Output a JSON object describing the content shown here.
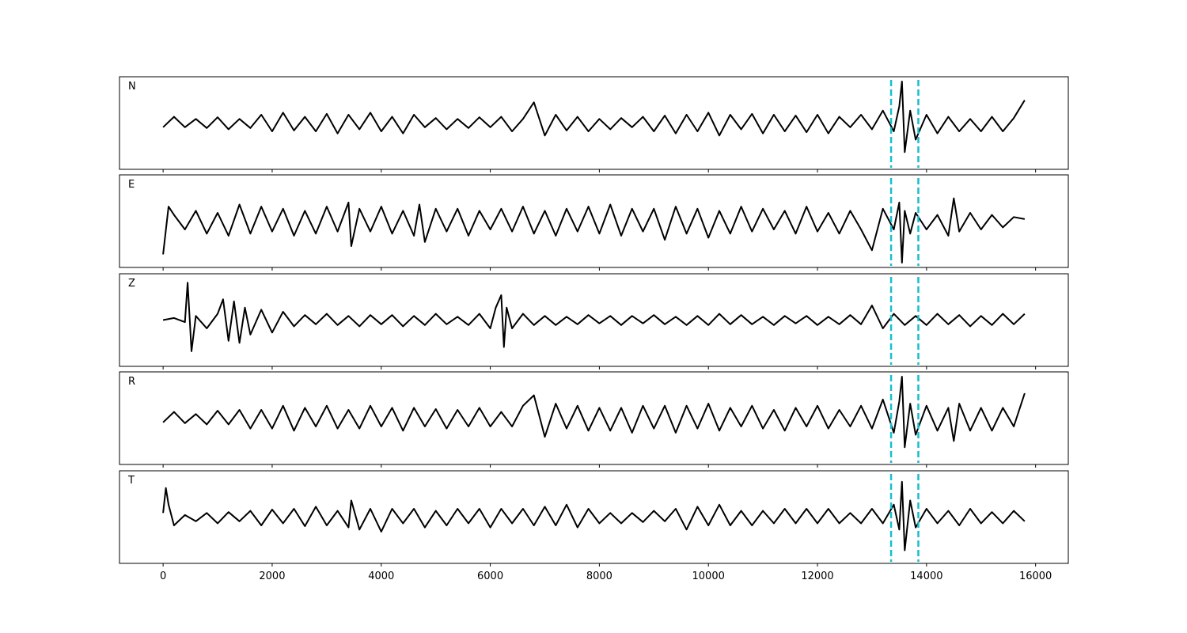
{
  "chart_data": {
    "type": "line",
    "layout": "stacked-panels",
    "shared_x_axis": true,
    "xlim": [
      -800,
      16600
    ],
    "x_ticks": [
      0,
      2000,
      4000,
      6000,
      8000,
      10000,
      12000,
      14000,
      16000
    ],
    "x_tick_labels": [
      "0",
      "2000",
      "4000",
      "6000",
      "8000",
      "10000",
      "12000",
      "14000",
      "16000"
    ],
    "grid": false,
    "line_color": "#000000",
    "marker_color": "#17becf",
    "markers": [
      {
        "x": 13350,
        "style": "dashed"
      },
      {
        "x": 13850,
        "style": "dashed"
      }
    ],
    "panels": [
      {
        "label": "N",
        "ylim": [
          -1,
          1
        ],
        "x": [
          0,
          200,
          400,
          600,
          800,
          1000,
          1200,
          1400,
          1600,
          1800,
          2000,
          2200,
          2400,
          2600,
          2800,
          3000,
          3200,
          3400,
          3600,
          3800,
          4000,
          4200,
          4400,
          4600,
          4800,
          5000,
          5200,
          5400,
          5600,
          5800,
          6000,
          6200,
          6400,
          6600,
          6800,
          7000,
          7200,
          7400,
          7600,
          7800,
          8000,
          8200,
          8400,
          8600,
          8800,
          9000,
          9200,
          9400,
          9600,
          9800,
          10000,
          10200,
          10400,
          10600,
          10800,
          11000,
          11200,
          11400,
          11600,
          11800,
          12000,
          12200,
          12400,
          12600,
          12800,
          13000,
          13200,
          13400,
          13500,
          13550,
          13600,
          13700,
          13800,
          14000,
          14200,
          14400,
          14600,
          14800,
          15000,
          15200,
          15400,
          15600,
          15800
        ],
        "y": [
          -0.1,
          0.15,
          -0.1,
          0.1,
          -0.12,
          0.14,
          -0.15,
          0.1,
          -0.12,
          0.2,
          -0.2,
          0.25,
          -0.18,
          0.15,
          -0.2,
          0.22,
          -0.25,
          0.2,
          -0.15,
          0.25,
          -0.2,
          0.15,
          -0.25,
          0.2,
          -0.1,
          0.12,
          -0.15,
          0.1,
          -0.12,
          0.14,
          -0.1,
          0.15,
          -0.2,
          0.1,
          0.5,
          -0.3,
          0.2,
          -0.18,
          0.15,
          -0.2,
          0.1,
          -0.15,
          0.12,
          -0.1,
          0.15,
          -0.2,
          0.18,
          -0.25,
          0.2,
          -0.2,
          0.25,
          -0.3,
          0.2,
          -0.15,
          0.22,
          -0.25,
          0.2,
          -0.2,
          0.18,
          -0.22,
          0.2,
          -0.25,
          0.15,
          -0.1,
          0.2,
          -0.15,
          0.3,
          -0.2,
          0.4,
          1.0,
          -0.7,
          0.3,
          -0.4,
          0.2,
          -0.25,
          0.15,
          -0.2,
          0.1,
          -0.2,
          0.15,
          -0.2,
          0.12,
          0.55
        ]
      },
      {
        "label": "E",
        "ylim": [
          -1,
          1
        ],
        "x": [
          0,
          100,
          200,
          400,
          600,
          800,
          1000,
          1200,
          1400,
          1600,
          1800,
          2000,
          2200,
          2400,
          2600,
          2800,
          3000,
          3200,
          3400,
          3450,
          3600,
          3800,
          4000,
          4200,
          4400,
          4600,
          4700,
          4800,
          5000,
          5200,
          5400,
          5600,
          5800,
          6000,
          6200,
          6400,
          6600,
          6800,
          7000,
          7200,
          7400,
          7600,
          7800,
          8000,
          8200,
          8400,
          8600,
          8800,
          9000,
          9200,
          9400,
          9600,
          9800,
          10000,
          10200,
          10400,
          10600,
          10800,
          11000,
          11200,
          11400,
          11600,
          11800,
          12000,
          12200,
          12400,
          12600,
          12800,
          13000,
          13200,
          13400,
          13500,
          13550,
          13600,
          13700,
          13800,
          14000,
          14200,
          14400,
          14500,
          14600,
          14800,
          15000,
          15200,
          15400,
          15600,
          15800
        ],
        "y": [
          -0.8,
          0.35,
          0.15,
          -0.2,
          0.25,
          -0.3,
          0.2,
          -0.35,
          0.4,
          -0.3,
          0.35,
          -0.25,
          0.3,
          -0.35,
          0.25,
          -0.3,
          0.35,
          -0.25,
          0.45,
          -0.6,
          0.3,
          -0.25,
          0.35,
          -0.3,
          0.25,
          -0.35,
          0.4,
          -0.5,
          0.3,
          -0.25,
          0.3,
          -0.35,
          0.25,
          -0.2,
          0.3,
          -0.25,
          0.35,
          -0.3,
          0.25,
          -0.35,
          0.3,
          -0.25,
          0.35,
          -0.3,
          0.4,
          -0.35,
          0.3,
          -0.25,
          0.3,
          -0.45,
          0.35,
          -0.3,
          0.3,
          -0.4,
          0.25,
          -0.3,
          0.35,
          -0.25,
          0.3,
          -0.2,
          0.25,
          -0.3,
          0.35,
          -0.25,
          0.2,
          -0.3,
          0.25,
          -0.2,
          -0.7,
          0.3,
          -0.2,
          0.45,
          -1.0,
          0.25,
          -0.3,
          0.2,
          -0.2,
          0.15,
          -0.35,
          0.55,
          -0.25,
          0.2,
          -0.2,
          0.15,
          -0.15,
          0.1,
          0.05
        ]
      },
      {
        "label": "Z",
        "ylim": [
          -1,
          1
        ],
        "x": [
          0,
          200,
          400,
          450,
          480,
          520,
          600,
          800,
          1000,
          1100,
          1200,
          1300,
          1400,
          1500,
          1600,
          1800,
          2000,
          2200,
          2400,
          2600,
          2800,
          3000,
          3200,
          3400,
          3600,
          3800,
          4000,
          4200,
          4400,
          4600,
          4800,
          5000,
          5200,
          5400,
          5600,
          5800,
          6000,
          6100,
          6200,
          6250,
          6300,
          6400,
          6600,
          6800,
          7000,
          7200,
          7400,
          7600,
          7800,
          8000,
          8200,
          8400,
          8600,
          8800,
          9000,
          9200,
          9400,
          9600,
          9800,
          10000,
          10200,
          10400,
          10600,
          10800,
          11000,
          11200,
          11400,
          11600,
          11800,
          12000,
          12200,
          12400,
          12600,
          12800,
          13000,
          13200,
          13400,
          13600,
          13800,
          14000,
          14200,
          14400,
          14600,
          14800,
          15000,
          15200,
          15400,
          15600,
          15800
        ],
        "y": [
          0.0,
          0.05,
          -0.05,
          0.9,
          0.2,
          -0.75,
          0.1,
          -0.2,
          0.15,
          0.5,
          -0.5,
          0.45,
          -0.55,
          0.3,
          -0.35,
          0.25,
          -0.3,
          0.2,
          -0.15,
          0.12,
          -0.1,
          0.15,
          -0.12,
          0.1,
          -0.15,
          0.12,
          -0.1,
          0.12,
          -0.15,
          0.1,
          -0.12,
          0.15,
          -0.1,
          0.08,
          -0.12,
          0.15,
          -0.2,
          0.3,
          0.6,
          -0.65,
          0.3,
          -0.2,
          0.15,
          -0.12,
          0.1,
          -0.12,
          0.08,
          -0.1,
          0.12,
          -0.08,
          0.1,
          -0.12,
          0.1,
          -0.08,
          0.12,
          -0.1,
          0.08,
          -0.12,
          0.1,
          -0.12,
          0.15,
          -0.1,
          0.12,
          -0.1,
          0.08,
          -0.12,
          0.1,
          -0.08,
          0.1,
          -0.12,
          0.08,
          -0.1,
          0.12,
          -0.1,
          0.35,
          -0.2,
          0.15,
          -0.12,
          0.1,
          -0.12,
          0.15,
          -0.1,
          0.12,
          -0.15,
          0.1,
          -0.12,
          0.15,
          -0.1,
          0.15
        ]
      },
      {
        "label": "R",
        "ylim": [
          -1,
          1
        ],
        "x": [
          0,
          200,
          400,
          600,
          800,
          1000,
          1200,
          1400,
          1600,
          1800,
          2000,
          2200,
          2400,
          2600,
          2800,
          3000,
          3200,
          3400,
          3600,
          3800,
          4000,
          4200,
          4400,
          4600,
          4800,
          5000,
          5200,
          5400,
          5600,
          5800,
          6000,
          6200,
          6400,
          6600,
          6800,
          7000,
          7200,
          7400,
          7600,
          7800,
          8000,
          8200,
          8400,
          8600,
          8800,
          9000,
          9200,
          9400,
          9600,
          9800,
          10000,
          10200,
          10400,
          10600,
          10800,
          11000,
          11200,
          11400,
          11600,
          11800,
          12000,
          12200,
          12400,
          12600,
          12800,
          13000,
          13200,
          13400,
          13500,
          13550,
          13600,
          13700,
          13800,
          14000,
          14200,
          14400,
          14500,
          14600,
          14800,
          15000,
          15200,
          15400,
          15600,
          15800
        ],
        "y": [
          -0.1,
          0.15,
          -0.12,
          0.1,
          -0.15,
          0.18,
          -0.15,
          0.2,
          -0.25,
          0.2,
          -0.25,
          0.3,
          -0.3,
          0.25,
          -0.2,
          0.3,
          -0.25,
          0.2,
          -0.25,
          0.3,
          -0.2,
          0.25,
          -0.3,
          0.25,
          -0.2,
          0.22,
          -0.25,
          0.2,
          -0.2,
          0.25,
          -0.2,
          0.15,
          -0.2,
          0.3,
          0.55,
          -0.45,
          0.35,
          -0.25,
          0.3,
          -0.3,
          0.25,
          -0.3,
          0.25,
          -0.35,
          0.3,
          -0.25,
          0.3,
          -0.35,
          0.3,
          -0.25,
          0.35,
          -0.3,
          0.25,
          -0.2,
          0.3,
          -0.25,
          0.2,
          -0.3,
          0.25,
          -0.2,
          0.3,
          -0.25,
          0.2,
          -0.2,
          0.3,
          -0.25,
          0.45,
          -0.35,
          0.4,
          1.0,
          -0.7,
          0.35,
          -0.4,
          0.3,
          -0.3,
          0.25,
          -0.55,
          0.35,
          -0.3,
          0.25,
          -0.3,
          0.25,
          -0.2,
          0.6
        ]
      },
      {
        "label": "T",
        "ylim": [
          -1,
          1
        ],
        "x": [
          0,
          50,
          100,
          200,
          400,
          600,
          800,
          1000,
          1200,
          1400,
          1600,
          1800,
          2000,
          2200,
          2400,
          2600,
          2800,
          3000,
          3200,
          3400,
          3450,
          3600,
          3800,
          4000,
          4200,
          4400,
          4600,
          4800,
          5000,
          5200,
          5400,
          5600,
          5800,
          6000,
          6200,
          6400,
          6600,
          6800,
          7000,
          7200,
          7400,
          7600,
          7800,
          8000,
          8200,
          8400,
          8600,
          8800,
          9000,
          9200,
          9400,
          9600,
          9800,
          10000,
          10200,
          10400,
          10600,
          10800,
          11000,
          11200,
          11400,
          11600,
          11800,
          12000,
          12200,
          12400,
          12600,
          12800,
          13000,
          13200,
          13400,
          13500,
          13550,
          13600,
          13700,
          13800,
          14000,
          14200,
          14400,
          14600,
          14800,
          15000,
          15200,
          15400,
          15600,
          15800
        ],
        "y": [
          0.1,
          0.7,
          0.3,
          -0.2,
          0.05,
          -0.1,
          0.1,
          -0.15,
          0.12,
          -0.1,
          0.15,
          -0.2,
          0.18,
          -0.15,
          0.2,
          -0.22,
          0.25,
          -0.2,
          0.15,
          -0.25,
          0.4,
          -0.3,
          0.2,
          -0.35,
          0.2,
          -0.15,
          0.2,
          -0.25,
          0.15,
          -0.2,
          0.2,
          -0.15,
          0.2,
          -0.25,
          0.2,
          -0.15,
          0.2,
          -0.2,
          0.25,
          -0.2,
          0.3,
          -0.25,
          0.2,
          -0.15,
          0.1,
          -0.15,
          0.1,
          -0.12,
          0.15,
          -0.1,
          0.2,
          -0.3,
          0.25,
          -0.2,
          0.3,
          -0.2,
          0.15,
          -0.2,
          0.15,
          -0.15,
          0.2,
          -0.15,
          0.2,
          -0.15,
          0.2,
          -0.15,
          0.1,
          -0.15,
          0.2,
          -0.15,
          0.3,
          -0.3,
          0.85,
          -0.8,
          0.4,
          -0.25,
          0.2,
          -0.15,
          0.15,
          -0.2,
          0.2,
          -0.15,
          0.12,
          -0.15,
          0.15,
          -0.1
        ]
      }
    ]
  }
}
